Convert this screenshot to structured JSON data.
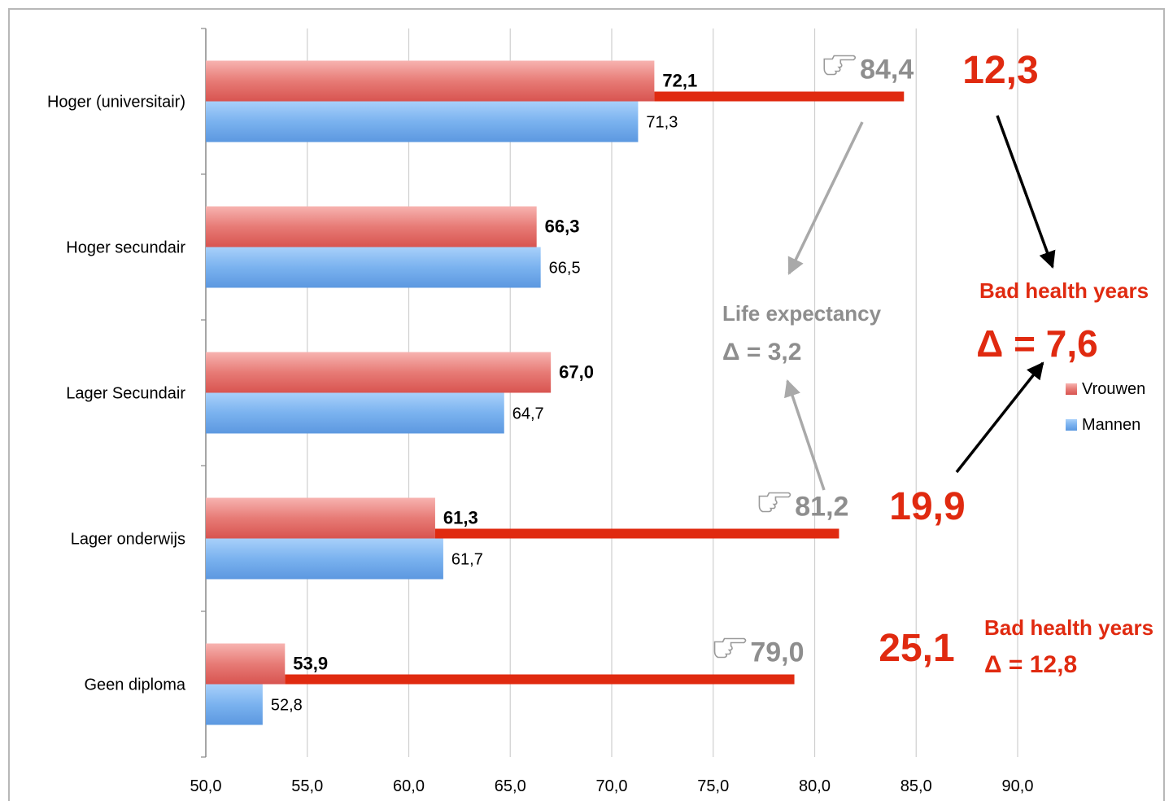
{
  "chart_data": {
    "type": "bar",
    "orientation": "horizontal",
    "title": "",
    "categories": [
      "Hoger (universitair)",
      "Hoger secundair",
      "Lager Secundair",
      "Lager onderwijs",
      "Geen diploma"
    ],
    "series": [
      {
        "name": "Vrouwen",
        "values": [
          72.1,
          66.3,
          67.0,
          61.3,
          53.9
        ],
        "labels": [
          "72,1",
          "66,3",
          "67,0",
          "61,3",
          "53,9"
        ],
        "color": "#e06666"
      },
      {
        "name": "Mannen",
        "values": [
          71.3,
          66.5,
          64.7,
          61.7,
          52.8
        ],
        "labels": [
          "71,3",
          "66,5",
          "64,7",
          "61,7",
          "52,8"
        ],
        "color": "#6fa8e8"
      }
    ],
    "xlim": [
      50,
      90
    ],
    "xticks": [
      50,
      55,
      60,
      65,
      70,
      75,
      80,
      85,
      90
    ],
    "xtick_labels": [
      "50,0",
      "55,0",
      "60,0",
      "65,0",
      "70,0",
      "75,0",
      "80,0",
      "85,0",
      "90,0"
    ],
    "grid": true,
    "legend_position": "right",
    "life_expectancy_lines": [
      {
        "category": "Hoger (universitair)",
        "from": 72.1,
        "to": 84.4,
        "label": "84,4",
        "gap": "12,3"
      },
      {
        "category": "Lager onderwijs",
        "from": 61.3,
        "to": 81.2,
        "label": "81,2",
        "gap": "19,9"
      },
      {
        "category": "Geen diploma",
        "from": 53.9,
        "to": 79.0,
        "label": "79,0",
        "gap": "25,1"
      }
    ],
    "annotations": {
      "life_expectancy_title": "Life expectancy",
      "life_expectancy_delta": "Δ = 3,2",
      "bad_health_title_1": "Bad health years",
      "bad_health_delta_1": "Δ = 7,6",
      "bad_health_title_2": "Bad health years",
      "bad_health_delta_2": "Δ = 12,8",
      "pointer_icon": "pointing-hand-icon"
    },
    "colors": {
      "accent_red": "#e02a10",
      "annotation_grey": "#8e8e8e"
    }
  }
}
